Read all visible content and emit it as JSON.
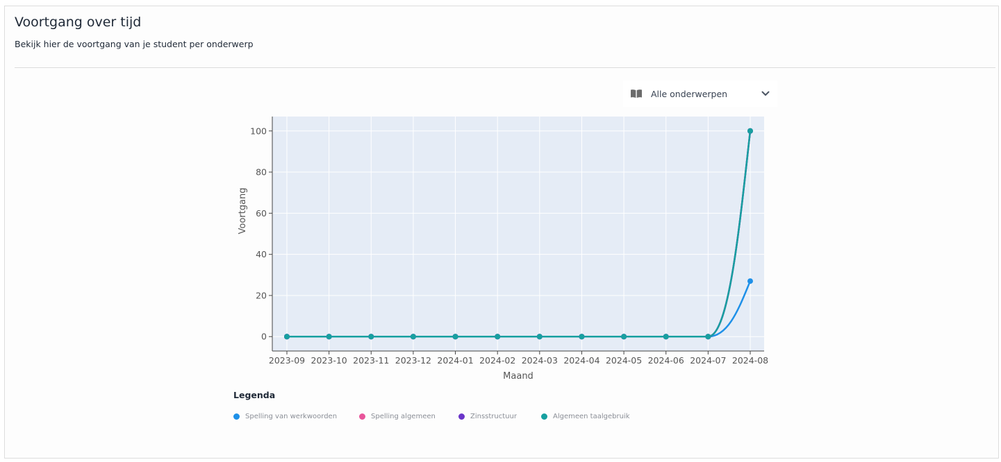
{
  "header": {
    "title": "Voortgang over tijd",
    "subtitle": "Bekijk hier de voortgang van je student per onderwerp"
  },
  "filter": {
    "selected": "Alle onderwerpen",
    "icon": "book-icon"
  },
  "chart_data": {
    "type": "line",
    "title": "",
    "xlabel": "Maand",
    "ylabel": "Voortgang",
    "categories": [
      "2023-09",
      "2023-10",
      "2023-11",
      "2023-12",
      "2024-01",
      "2024-02",
      "2024-03",
      "2024-04",
      "2024-05",
      "2024-06",
      "2024-07",
      "2024-08"
    ],
    "yticks": [
      0,
      20,
      40,
      60,
      80,
      100
    ],
    "ylim": [
      -7,
      107
    ],
    "grid": true,
    "series": [
      {
        "name": "Spelling van werkwoorden",
        "color": "#1e90e8",
        "values": [
          0,
          0,
          0,
          0,
          0,
          0,
          0,
          0,
          0,
          0,
          0,
          27
        ]
      },
      {
        "name": "Spelling algemeen",
        "color": "#e8559a",
        "values": [
          0,
          0,
          0,
          0,
          0,
          0,
          0,
          0,
          0,
          0,
          0,
          100
        ]
      },
      {
        "name": "Zinsstructuur",
        "color": "#6a35c9",
        "values": [
          0,
          0,
          0,
          0,
          0,
          0,
          0,
          0,
          0,
          0,
          0,
          100
        ]
      },
      {
        "name": "Algemeen taalgebruik",
        "color": "#17a0a0",
        "values": [
          0,
          0,
          0,
          0,
          0,
          0,
          0,
          0,
          0,
          0,
          0,
          100
        ]
      }
    ]
  },
  "legend": {
    "title": "Legenda"
  }
}
